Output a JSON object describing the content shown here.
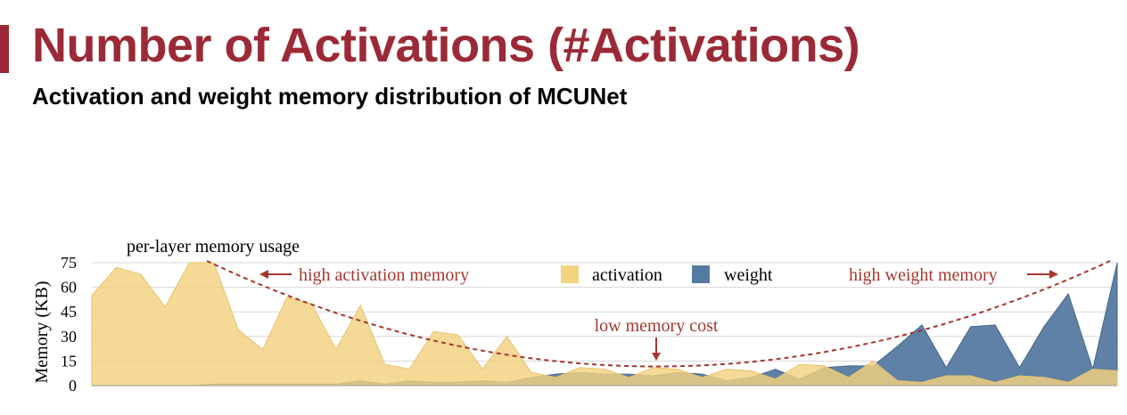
{
  "title": "Number of Activations (#Activations)",
  "subtitle": "Activation and weight memory distribution of MCUNet",
  "colors": {
    "accent": "#9b2a36",
    "activation": "#f3d280",
    "weight": "#557aa0",
    "curve": "#a6372f"
  },
  "chart_data": {
    "type": "area",
    "title": "per-layer memory usage",
    "ylabel": "Memory (KB)",
    "xlabel": "",
    "ylim": [
      0,
      75
    ],
    "yticks": [
      0,
      15,
      30,
      45,
      60,
      75
    ],
    "legend_position": "top-center",
    "series": [
      {
        "name": "activation",
        "color": "#f3d280",
        "values": [
          55,
          72,
          68,
          48,
          75,
          75,
          34,
          22,
          54,
          50,
          22,
          49,
          13,
          10,
          33,
          31,
          10,
          30,
          8,
          5,
          11,
          10,
          5,
          11,
          10,
          5,
          10,
          9,
          4,
          13,
          12,
          5,
          15,
          3,
          2,
          6,
          6,
          2,
          6,
          5,
          2,
          10,
          9
        ]
      },
      {
        "name": "weight",
        "color": "#557aa0",
        "values": [
          0,
          0,
          0,
          0,
          0,
          1,
          1,
          1,
          1,
          1,
          1,
          3,
          1,
          3,
          2,
          2,
          3,
          2,
          5,
          7,
          8,
          7,
          7,
          6,
          8,
          7,
          3,
          5,
          10,
          4,
          11,
          12,
          12,
          24,
          37,
          11,
          36,
          37,
          11,
          36,
          56,
          10,
          75
        ]
      }
    ],
    "annotations": [
      {
        "text": "high activation memory",
        "arrow": "left"
      },
      {
        "text": "low memory cost",
        "arrow": "down"
      },
      {
        "text": "high weight memory",
        "arrow": "right"
      }
    ]
  }
}
